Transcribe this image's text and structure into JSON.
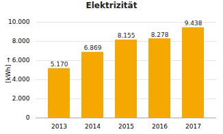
{
  "chart_data": {
    "type": "bar",
    "title": "Elektrizität",
    "categories": [
      "2013",
      "2014",
      "2015",
      "2016",
      "2017"
    ],
    "values": [
      5170,
      6869,
      8155,
      8278,
      9438
    ],
    "value_labels": [
      "5.170",
      "6.869",
      "8.155",
      "8.278",
      "9.438"
    ],
    "data_labels": true,
    "color": "#F5A800",
    "ylabel": "[kWh]",
    "ylim": [
      0,
      10000
    ],
    "yticks": [
      0,
      {
        "value": 2000,
        "label": "2.000"
      },
      {
        "value": 4000,
        "label": "4.000"
      },
      {
        "value": 6000,
        "label": "6.000"
      },
      {
        "value": 8000,
        "label": "8.000"
      },
      {
        "value": 10000,
        "label": "10.000"
      }
    ],
    "grid": true
  }
}
